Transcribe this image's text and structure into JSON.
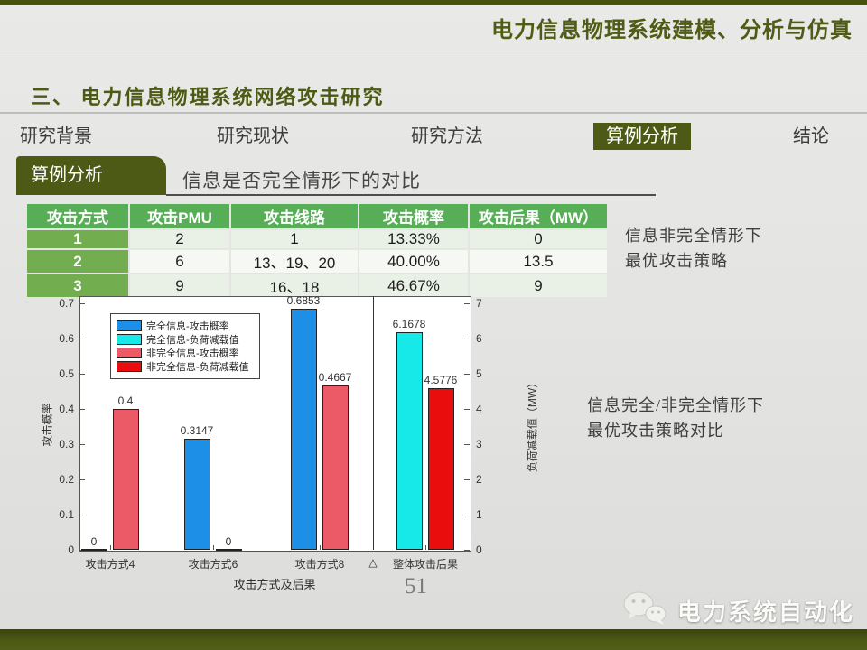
{
  "header": {
    "title": "电力信息物理系统建模、分析与仿真"
  },
  "section": {
    "title": "三、 电力信息物理系统网络攻击研究"
  },
  "nav": {
    "items": [
      {
        "label": "研究背景",
        "active": false
      },
      {
        "label": "研究现状",
        "active": false
      },
      {
        "label": "研究方法",
        "active": false
      },
      {
        "label": "算例分析",
        "active": true
      },
      {
        "label": "结论",
        "active": false
      }
    ]
  },
  "subtab": {
    "label": "算例分析"
  },
  "content_title": "信息是否完全情形下的对比",
  "table": {
    "headers": [
      "攻击方式",
      "攻击PMU",
      "攻击线路",
      "攻击概率",
      "攻击后果（MW）"
    ],
    "rows": [
      [
        "1",
        "2",
        "1",
        "13.33%",
        "0"
      ],
      [
        "2",
        "6",
        "13、19、20",
        "40.00%",
        "13.5"
      ],
      [
        "3",
        "9",
        "16、18",
        "46.67%",
        "9"
      ]
    ]
  },
  "annotations": {
    "right_top": "信息非完全情形下\n最优攻击策略",
    "right_middle": "信息完全/非完全情形下\n最优攻击策略对比"
  },
  "chart_data": {
    "type": "bar",
    "dual_axis": true,
    "xlabel": "攻击方式及后果",
    "left_axis": {
      "label": "攻击概率",
      "lim": [
        0,
        0.7
      ],
      "ticks": [
        "0",
        "0.1",
        "0.2",
        "0.3",
        "0.4",
        "0.5",
        "0.6",
        "0.7"
      ]
    },
    "right_axis": {
      "label": "负荷减载值（MW）",
      "lim": [
        0,
        7
      ],
      "ticks": [
        "0",
        "1",
        "2",
        "3",
        "4",
        "5",
        "6",
        "7"
      ]
    },
    "legend_position": "upper-left-inside",
    "legend": [
      {
        "label": "完全信息-攻击概率",
        "color": "#1e8fe6"
      },
      {
        "label": "完全信息-负荷减载值",
        "color": "#17e9e9"
      },
      {
        "label": "非完全信息-攻击概率",
        "color": "#ec5a68"
      },
      {
        "label": "非完全信息-负荷减载值",
        "color": "#ea0d0d"
      }
    ],
    "separator_symbol": "△",
    "groups": [
      {
        "category": "攻击方式4",
        "axis": "left",
        "bars": [
          {
            "series": "完全信息-攻击概率",
            "value": 0,
            "label": "0"
          },
          {
            "series": "非完全信息-攻击概率",
            "value": 0.4,
            "label": "0.4"
          }
        ]
      },
      {
        "category": "攻击方式6",
        "axis": "left",
        "bars": [
          {
            "series": "完全信息-攻击概率",
            "value": 0.3147,
            "label": "0.3147"
          },
          {
            "series": "非完全信息-攻击概率",
            "value": 0,
            "label": "0"
          }
        ]
      },
      {
        "category": "攻击方式8",
        "axis": "left",
        "bars": [
          {
            "series": "完全信息-攻击概率",
            "value": 0.6853,
            "label": "0.6853"
          },
          {
            "series": "非完全信息-攻击概率",
            "value": 0.4667,
            "label": "0.4667"
          }
        ]
      },
      {
        "category": "整体攻击后果",
        "axis": "right",
        "bars": [
          {
            "series": "完全信息-负荷减载值",
            "value": 6.1678,
            "label": "6.1678"
          },
          {
            "series": "非完全信息-负荷减载值",
            "value": 4.5776,
            "label": "4.5776"
          }
        ]
      }
    ]
  },
  "page_number": "51",
  "footer": {
    "brand": "电力系统自动化"
  }
}
